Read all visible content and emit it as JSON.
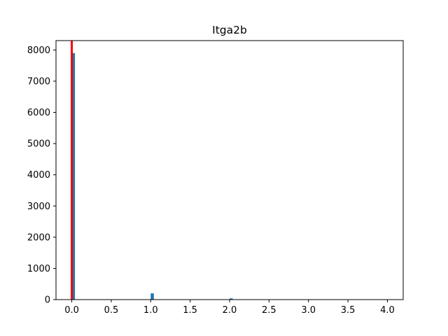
{
  "chart_data": {
    "type": "bar",
    "title": "Itga2b",
    "xlabel": "",
    "ylabel": "",
    "xlim": [
      -0.2,
      4.2
    ],
    "ylim": [
      0,
      8300
    ],
    "xticks": [
      0.0,
      0.5,
      1.0,
      1.5,
      2.0,
      2.5,
      3.0,
      3.5,
      4.0
    ],
    "xtick_labels": [
      "0.0",
      "0.5",
      "1.0",
      "1.5",
      "2.0",
      "2.5",
      "3.0",
      "3.5",
      "4.0"
    ],
    "yticks": [
      0,
      1000,
      2000,
      3000,
      4000,
      5000,
      6000,
      7000,
      8000
    ],
    "ytick_labels": [
      "0",
      "1000",
      "2000",
      "3000",
      "4000",
      "5000",
      "6000",
      "7000",
      "8000"
    ],
    "bin_width": 0.04,
    "series": [
      {
        "bins": [
          {
            "x0": 0.0,
            "x1": 0.04,
            "count": 7900
          },
          {
            "x0": 1.0,
            "x1": 1.04,
            "count": 200
          },
          {
            "x0": 2.0,
            "x1": 2.04,
            "count": 40
          },
          {
            "x0": 3.96,
            "x1": 4.0,
            "count": 5
          }
        ]
      }
    ],
    "reference_line": {
      "x": 0.0,
      "color": "#ff0000"
    },
    "grid": false,
    "bar_color": "#1f77b4"
  }
}
